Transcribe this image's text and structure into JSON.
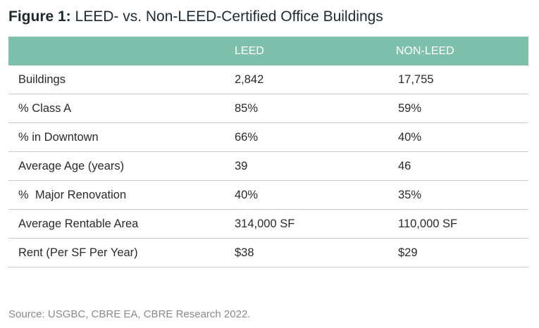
{
  "title": {
    "prefix": "Figure 1:",
    "text": " LEED- vs. Non-LEED-Certified Office Buildings"
  },
  "table": {
    "headers": [
      "",
      "LEED",
      "NON-LEED"
    ],
    "rows": [
      [
        "Buildings",
        "2,842",
        "17,755"
      ],
      [
        "% Class A",
        "85%",
        "59%"
      ],
      [
        "% in Downtown",
        "66%",
        "40%"
      ],
      [
        "Average Age (years)",
        "39",
        "46"
      ],
      [
        "%  Major Renovation",
        "40%",
        "35%"
      ],
      [
        "Average Rentable Area",
        "314,000 SF",
        "110,000 SF"
      ],
      [
        "Rent (Per SF Per Year)",
        "$38",
        "$29"
      ]
    ]
  },
  "source": "Source: USGBC, CBRE EA, CBRE Research 2022.",
  "colors": {
    "header_bg": "#7fc0ad",
    "header_text": "#ffffff",
    "divider": "#c9c9c9"
  }
}
